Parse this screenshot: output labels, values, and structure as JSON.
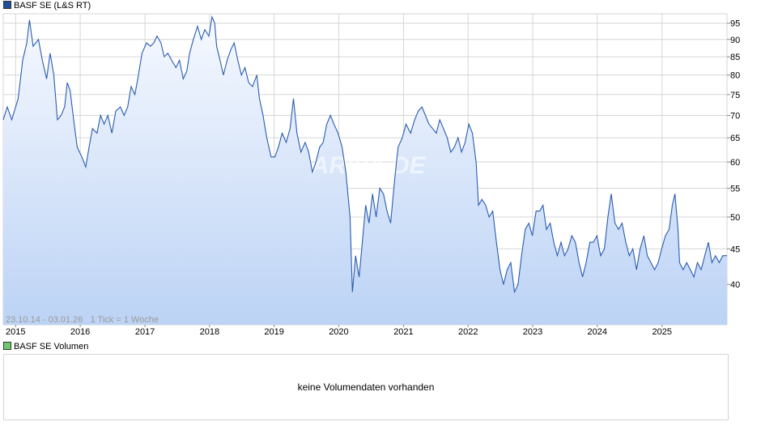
{
  "price_legend": {
    "label": "BASF SE (L&S RT)",
    "color": "#1f4e9c"
  },
  "volume_legend": {
    "label": "BASF SE Volumen",
    "color": "#6ec96e"
  },
  "range_info": {
    "text": "23.10.14 - 03.01.26   1 Tick = 1 Woche"
  },
  "watermark": {
    "text": "ARIVA.DE"
  },
  "volume_panel": {
    "message": "keine Volumendaten vorhanden"
  },
  "colors": {
    "line": "#2a5cb0",
    "area_top": "#f6f9ff",
    "area_bottom": "#bcd3f5",
    "grid": "#d6d6d6"
  },
  "chart_data": {
    "type": "area",
    "title": "BASF SE (L&S RT)",
    "x_ticks": [
      "2015",
      "2016",
      "2017",
      "2018",
      "2019",
      "2020",
      "2021",
      "2022",
      "2023",
      "2024",
      "2025"
    ],
    "y_ticks": [
      40,
      45,
      50,
      55,
      60,
      65,
      70,
      75,
      80,
      85,
      90,
      95
    ],
    "y_scale": "log",
    "ylim": [
      35,
      98
    ],
    "xlim": [
      "2014-10-23",
      "2026-01-03"
    ],
    "grid": true,
    "series": [
      {
        "name": "BASF SE (L&S RT)",
        "points": [
          [
            "2014-10-23",
            69
          ],
          [
            "2014-11-15",
            72
          ],
          [
            "2014-12-10",
            69
          ],
          [
            "2015-01-15",
            74
          ],
          [
            "2015-02-10",
            84
          ],
          [
            "2015-03-05",
            89
          ],
          [
            "2015-03-20",
            96
          ],
          [
            "2015-04-10",
            88
          ],
          [
            "2015-05-10",
            90
          ],
          [
            "2015-06-01",
            84
          ],
          [
            "2015-06-25",
            79
          ],
          [
            "2015-07-15",
            86
          ],
          [
            "2015-08-05",
            80
          ],
          [
            "2015-08-25",
            69
          ],
          [
            "2015-09-15",
            70
          ],
          [
            "2015-10-05",
            72
          ],
          [
            "2015-10-20",
            78
          ],
          [
            "2015-11-05",
            76
          ],
          [
            "2015-11-25",
            69
          ],
          [
            "2015-12-15",
            63
          ],
          [
            "2016-01-10",
            61
          ],
          [
            "2016-02-01",
            59
          ],
          [
            "2016-02-20",
            63
          ],
          [
            "2016-03-10",
            67
          ],
          [
            "2016-04-05",
            66
          ],
          [
            "2016-04-25",
            70
          ],
          [
            "2016-05-15",
            68
          ],
          [
            "2016-06-05",
            70
          ],
          [
            "2016-06-28",
            66
          ],
          [
            "2016-07-20",
            71
          ],
          [
            "2016-08-15",
            72
          ],
          [
            "2016-09-05",
            70
          ],
          [
            "2016-09-25",
            72
          ],
          [
            "2016-10-15",
            77
          ],
          [
            "2016-11-05",
            75
          ],
          [
            "2016-11-25",
            80
          ],
          [
            "2016-12-15",
            86
          ],
          [
            "2017-01-10",
            89
          ],
          [
            "2017-02-01",
            88
          ],
          [
            "2017-02-20",
            89
          ],
          [
            "2017-03-10",
            91
          ],
          [
            "2017-04-01",
            89
          ],
          [
            "2017-04-20",
            85
          ],
          [
            "2017-05-10",
            86
          ],
          [
            "2017-06-01",
            84
          ],
          [
            "2017-06-25",
            82
          ],
          [
            "2017-07-15",
            84
          ],
          [
            "2017-08-05",
            79
          ],
          [
            "2017-08-25",
            81
          ],
          [
            "2017-09-10",
            86
          ],
          [
            "2017-10-01",
            90
          ],
          [
            "2017-10-25",
            94
          ],
          [
            "2017-11-15",
            90
          ],
          [
            "2017-12-05",
            93
          ],
          [
            "2017-12-28",
            91
          ],
          [
            "2018-01-15",
            97
          ],
          [
            "2018-01-30",
            95
          ],
          [
            "2018-02-10",
            88
          ],
          [
            "2018-03-01",
            84
          ],
          [
            "2018-03-20",
            80
          ],
          [
            "2018-04-10",
            84
          ],
          [
            "2018-05-01",
            87
          ],
          [
            "2018-05-20",
            89
          ],
          [
            "2018-06-10",
            84
          ],
          [
            "2018-06-30",
            80
          ],
          [
            "2018-07-20",
            82
          ],
          [
            "2018-08-10",
            78
          ],
          [
            "2018-09-01",
            77
          ],
          [
            "2018-09-25",
            80
          ],
          [
            "2018-10-10",
            74
          ],
          [
            "2018-10-30",
            70
          ],
          [
            "2018-11-20",
            65
          ],
          [
            "2018-12-15",
            61
          ],
          [
            "2019-01-05",
            61
          ],
          [
            "2019-01-25",
            63
          ],
          [
            "2019-02-15",
            66
          ],
          [
            "2019-03-10",
            64
          ],
          [
            "2019-04-01",
            67
          ],
          [
            "2019-04-20",
            74
          ],
          [
            "2019-05-10",
            66
          ],
          [
            "2019-06-01",
            62
          ],
          [
            "2019-06-25",
            64
          ],
          [
            "2019-07-15",
            62
          ],
          [
            "2019-08-05",
            58
          ],
          [
            "2019-08-25",
            60
          ],
          [
            "2019-09-15",
            63
          ],
          [
            "2019-10-05",
            64
          ],
          [
            "2019-10-25",
            68
          ],
          [
            "2019-11-15",
            70
          ],
          [
            "2019-12-05",
            68
          ],
          [
            "2019-12-28",
            66
          ],
          [
            "2020-01-20",
            63
          ],
          [
            "2020-02-10",
            58
          ],
          [
            "2020-03-05",
            50
          ],
          [
            "2020-03-18",
            39
          ],
          [
            "2020-04-05",
            44
          ],
          [
            "2020-04-25",
            41
          ],
          [
            "2020-05-10",
            45
          ],
          [
            "2020-06-01",
            52
          ],
          [
            "2020-06-20",
            49
          ],
          [
            "2020-07-10",
            54
          ],
          [
            "2020-07-30",
            50
          ],
          [
            "2020-08-20",
            55
          ],
          [
            "2020-09-10",
            54
          ],
          [
            "2020-09-30",
            51
          ],
          [
            "2020-10-20",
            49
          ],
          [
            "2020-11-10",
            56
          ],
          [
            "2020-12-01",
            63
          ],
          [
            "2020-12-25",
            65
          ],
          [
            "2021-01-15",
            68
          ],
          [
            "2021-02-10",
            66
          ],
          [
            "2021-03-05",
            69
          ],
          [
            "2021-03-25",
            71
          ],
          [
            "2021-04-15",
            72
          ],
          [
            "2021-05-05",
            70
          ],
          [
            "2021-05-25",
            68
          ],
          [
            "2021-06-15",
            67
          ],
          [
            "2021-07-05",
            66
          ],
          [
            "2021-07-25",
            69
          ],
          [
            "2021-08-15",
            67
          ],
          [
            "2021-09-05",
            65
          ],
          [
            "2021-09-25",
            62
          ],
          [
            "2021-10-15",
            63
          ],
          [
            "2021-11-05",
            65
          ],
          [
            "2021-11-25",
            62
          ],
          [
            "2021-12-15",
            64
          ],
          [
            "2022-01-05",
            68
          ],
          [
            "2022-01-25",
            66
          ],
          [
            "2022-02-15",
            60
          ],
          [
            "2022-03-01",
            52
          ],
          [
            "2022-03-20",
            53
          ],
          [
            "2022-04-10",
            52
          ],
          [
            "2022-04-30",
            50
          ],
          [
            "2022-05-20",
            51
          ],
          [
            "2022-06-10",
            46
          ],
          [
            "2022-06-30",
            42
          ],
          [
            "2022-07-20",
            40
          ],
          [
            "2022-08-10",
            42
          ],
          [
            "2022-08-30",
            43
          ],
          [
            "2022-09-20",
            39
          ],
          [
            "2022-10-10",
            40
          ],
          [
            "2022-10-30",
            44
          ],
          [
            "2022-11-20",
            48
          ],
          [
            "2022-12-10",
            49
          ],
          [
            "2022-12-30",
            47
          ],
          [
            "2023-01-20",
            51
          ],
          [
            "2023-02-10",
            51
          ],
          [
            "2023-02-28",
            52
          ],
          [
            "2023-03-20",
            48
          ],
          [
            "2023-04-10",
            49
          ],
          [
            "2023-04-30",
            46
          ],
          [
            "2023-05-20",
            44
          ],
          [
            "2023-06-10",
            46
          ],
          [
            "2023-06-30",
            44
          ],
          [
            "2023-07-20",
            45
          ],
          [
            "2023-08-10",
            47
          ],
          [
            "2023-08-30",
            46
          ],
          [
            "2023-09-20",
            43
          ],
          [
            "2023-10-10",
            41
          ],
          [
            "2023-10-30",
            43
          ],
          [
            "2023-11-20",
            46
          ],
          [
            "2023-12-10",
            46
          ],
          [
            "2023-12-30",
            47
          ],
          [
            "2024-01-20",
            44
          ],
          [
            "2024-02-10",
            45
          ],
          [
            "2024-03-01",
            50
          ],
          [
            "2024-03-20",
            54
          ],
          [
            "2024-04-10",
            49
          ],
          [
            "2024-04-30",
            48
          ],
          [
            "2024-05-20",
            49
          ],
          [
            "2024-06-10",
            46
          ],
          [
            "2024-06-30",
            44
          ],
          [
            "2024-07-20",
            45
          ],
          [
            "2024-08-10",
            42
          ],
          [
            "2024-08-30",
            45
          ],
          [
            "2024-09-20",
            47
          ],
          [
            "2024-10-10",
            44
          ],
          [
            "2024-10-30",
            43
          ],
          [
            "2024-11-20",
            42
          ],
          [
            "2024-12-10",
            43
          ],
          [
            "2024-12-30",
            45
          ],
          [
            "2025-01-20",
            47
          ],
          [
            "2025-02-10",
            48
          ],
          [
            "2025-02-28",
            52
          ],
          [
            "2025-03-15",
            54
          ],
          [
            "2025-04-01",
            48
          ],
          [
            "2025-04-10",
            43
          ],
          [
            "2025-04-30",
            42
          ],
          [
            "2025-05-20",
            43
          ],
          [
            "2025-06-10",
            42
          ],
          [
            "2025-06-30",
            41
          ],
          [
            "2025-07-20",
            43
          ],
          [
            "2025-08-10",
            42
          ],
          [
            "2025-08-30",
            44
          ],
          [
            "2025-09-20",
            46
          ],
          [
            "2025-10-10",
            43
          ],
          [
            "2025-10-30",
            44
          ],
          [
            "2025-11-20",
            43
          ],
          [
            "2025-12-10",
            44
          ],
          [
            "2026-01-03",
            44
          ]
        ]
      }
    ]
  }
}
